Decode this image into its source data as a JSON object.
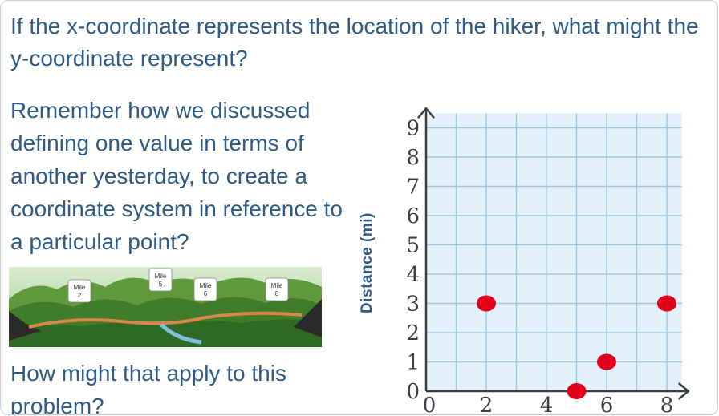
{
  "question": "If the x-coordinate represents the location of the hiker, what might the y-coordinate represent?",
  "paragraph": "Remember how we discussed defining one value in terms of another yesterday, to create a coordinate system in reference to a particular point?",
  "followup": "How might that apply to this problem?",
  "trail_image": {
    "signs": [
      {
        "line1": "Mile",
        "line2": "2"
      },
      {
        "line1": "Mile",
        "line2": "5"
      },
      {
        "line1": "Mile",
        "line2": "6"
      },
      {
        "line1": "Mile",
        "line2": "8"
      }
    ]
  },
  "colors": {
    "text": "#2e5b86",
    "grid_fill": "#e3f1fb",
    "grid_line": "#9cc8e6",
    "point": "#e0001b",
    "axis": "#3a3f45"
  },
  "chart_data": {
    "type": "scatter",
    "ylabel": "Distance (mi)",
    "xlabel": "",
    "xlim": [
      0,
      8.5
    ],
    "ylim": [
      0,
      9.5
    ],
    "x_ticks": [
      "0",
      "2",
      "4",
      "6",
      "8"
    ],
    "y_ticks": [
      "0",
      "1",
      "2",
      "3",
      "4",
      "5",
      "6",
      "7",
      "8",
      "9"
    ],
    "grid": true,
    "points": [
      {
        "x": 2,
        "y": 3
      },
      {
        "x": 5,
        "y": 0
      },
      {
        "x": 6,
        "y": 1
      },
      {
        "x": 8,
        "y": 3
      }
    ]
  }
}
